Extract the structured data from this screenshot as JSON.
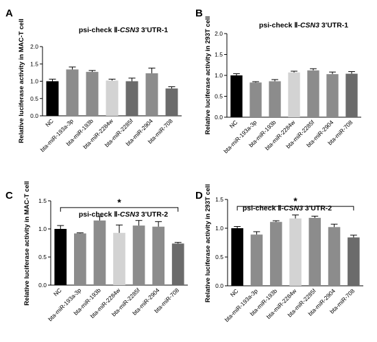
{
  "chart_data": [
    {
      "panel": "A",
      "type": "bar",
      "title_prefix": "psi-check Ⅱ-",
      "title_gene": "CSN3",
      "title_suffix": " 3'UTR-1",
      "xlabel": "",
      "ylabel": "Relative luciferase activity in MAC-T cell",
      "ylim": [
        0,
        2.0
      ],
      "yticks": [
        "0.0",
        "0.5",
        "1.0",
        "1.5",
        "2.0"
      ],
      "categories": [
        "NC",
        "bta-miR-193a-3p",
        "bta-miR-193b",
        "bta-miR-2284w",
        "bta-miR-2285f",
        "bta-miR-2904",
        "bta-miR-708"
      ],
      "values": [
        1.0,
        1.34,
        1.27,
        1.02,
        1.0,
        1.23,
        0.79
      ],
      "errors": [
        0.06,
        0.07,
        0.04,
        0.04,
        0.09,
        0.15,
        0.05
      ],
      "colors": [
        "#000000",
        "#8c8c8c",
        "#8c8c8c",
        "#d3d3d3",
        "#6b6b6b",
        "#8c8c8c",
        "#6b6b6b"
      ],
      "significance": null
    },
    {
      "panel": "B",
      "type": "bar",
      "title_prefix": "psi-check Ⅱ-",
      "title_gene": "CSN3",
      "title_suffix": " 3'UTR-1",
      "xlabel": "",
      "ylabel": "Relative luciferase activity in 293T cell",
      "ylim": [
        0,
        2.0
      ],
      "yticks": [
        "0.0",
        "0.5",
        "1.0",
        "1.5",
        "2.0"
      ],
      "categories": [
        "NC",
        "bta-miR-193a-3p",
        "bta-miR-193b",
        "bta-miR-2284w",
        "bta-miR-2285f",
        "bta-miR-2904",
        "bta-miR-708"
      ],
      "values": [
        1.0,
        0.83,
        0.86,
        1.07,
        1.12,
        1.03,
        1.04
      ],
      "errors": [
        0.04,
        0.02,
        0.04,
        0.03,
        0.04,
        0.05,
        0.05
      ],
      "colors": [
        "#000000",
        "#8c8c8c",
        "#8c8c8c",
        "#d3d3d3",
        "#8c8c8c",
        "#8c8c8c",
        "#6b6b6b"
      ],
      "significance": null
    },
    {
      "panel": "C",
      "type": "bar",
      "title_prefix": "psi-check Ⅱ-",
      "title_gene": "CSN3",
      "title_suffix": " 3'UTR-2",
      "xlabel": "",
      "ylabel": "Relative luciferase activity in MAC-T cell",
      "ylim": [
        0,
        1.5
      ],
      "yticks": [
        "0.0",
        "0.5",
        "1.0",
        "1.5"
      ],
      "categories": [
        "NC",
        "bta-miR-193a-3p",
        "bta-miR-193b",
        "bta-miR-2284w",
        "bta-miR-2285f",
        "bta-miR-2904",
        "bta-miR-708"
      ],
      "values": [
        1.0,
        0.92,
        1.15,
        0.93,
        1.06,
        1.04,
        0.74
      ],
      "errors": [
        0.06,
        0.01,
        0.07,
        0.14,
        0.09,
        0.09,
        0.02
      ],
      "colors": [
        "#000000",
        "#8c8c8c",
        "#8c8c8c",
        "#d3d3d3",
        "#8c8c8c",
        "#8c8c8c",
        "#6b6b6b"
      ],
      "significance": {
        "from": 0,
        "to": 6,
        "y": 1.38,
        "label": "*"
      }
    },
    {
      "panel": "D",
      "type": "bar",
      "title_prefix": "psi-check Ⅱ-",
      "title_gene": "CSN3",
      "title_suffix": " 3'UTR-2",
      "xlabel": "",
      "ylabel": "Relative luciferase activity in 293T cell",
      "ylim": [
        0,
        1.5
      ],
      "yticks": [
        "0.0",
        "0.5",
        "1.0",
        "1.5"
      ],
      "categories": [
        "NC",
        "bta-miR-193a-3p",
        "bta-miR-193b",
        "bta-miR-2284w",
        "bta-miR-2285f",
        "bta-miR-2904",
        "bta-miR-708"
      ],
      "values": [
        1.0,
        0.89,
        1.11,
        1.17,
        1.18,
        1.02,
        0.84
      ],
      "errors": [
        0.03,
        0.05,
        0.02,
        0.06,
        0.03,
        0.05,
        0.04
      ],
      "colors": [
        "#000000",
        "#8c8c8c",
        "#8c8c8c",
        "#d3d3d3",
        "#8c8c8c",
        "#8c8c8c",
        "#6b6b6b"
      ],
      "significance": {
        "from": 0,
        "to": 6,
        "y": 1.38,
        "label": "*"
      }
    }
  ]
}
